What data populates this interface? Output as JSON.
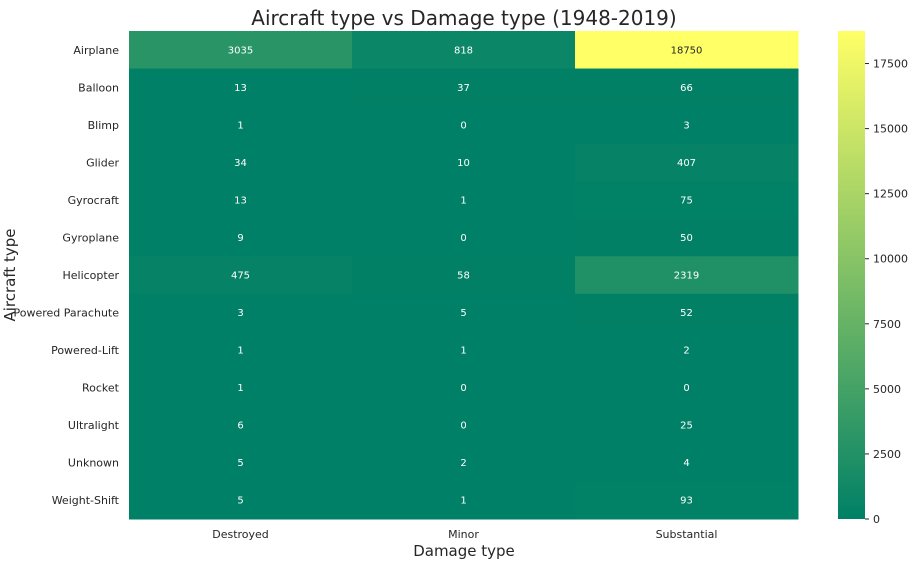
{
  "chart_data": {
    "type": "heatmap",
    "title": "Aircraft type vs Damage type (1948-2019)",
    "xlabel": "Damage type",
    "ylabel": "Aircraft type",
    "columns": [
      "Destroyed",
      "Minor",
      "Substantial"
    ],
    "rows": [
      "Airplane",
      "Balloon",
      "Blimp",
      "Glider",
      "Gyrocraft",
      "Gyroplane",
      "Helicopter",
      "Powered Parachute",
      "Powered-Lift",
      "Rocket",
      "Ultralight",
      "Unknown",
      "Weight-Shift"
    ],
    "values": [
      [
        3035,
        818,
        18750
      ],
      [
        13,
        37,
        66
      ],
      [
        1,
        0,
        3
      ],
      [
        34,
        10,
        407
      ],
      [
        13,
        1,
        75
      ],
      [
        9,
        0,
        50
      ],
      [
        475,
        58,
        2319
      ],
      [
        3,
        5,
        52
      ],
      [
        1,
        1,
        2
      ],
      [
        1,
        0,
        0
      ],
      [
        6,
        0,
        25
      ],
      [
        5,
        2,
        4
      ],
      [
        5,
        1,
        93
      ]
    ],
    "colormap": "summer",
    "colormap_stops": [
      "#008066",
      "#ffff66"
    ],
    "vmin": 0,
    "vmax": 18750,
    "colorbar_ticks": [
      0,
      2500,
      5000,
      7500,
      10000,
      12500,
      15000,
      17500
    ],
    "annotations": true
  }
}
